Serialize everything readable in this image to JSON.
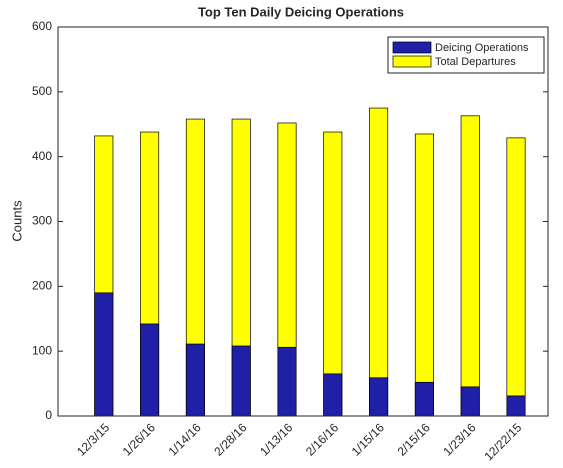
{
  "chart_data": {
    "type": "bar",
    "title": "Top Ten Daily Deicing Operations",
    "y_label": "Counts",
    "categories": [
      "12/3/15",
      "1/26/16",
      "1/14/16",
      "2/28/16",
      "1/13/16",
      "2/16/16",
      "1/15/16",
      "2/15/16",
      "1/23/16",
      "12/22/15"
    ],
    "series": [
      {
        "name": "Deicing Operations",
        "color": "#1f1fa8",
        "values": [
          190,
          142,
          111,
          108,
          106,
          65,
          59,
          52,
          45,
          31
        ]
      },
      {
        "name": "Total Departures",
        "color": "#ffff00",
        "values": [
          432,
          438,
          458,
          458,
          452,
          438,
          475,
          435,
          463,
          429
        ]
      }
    ],
    "ylim": [
      0,
      600
    ],
    "yticks": [
      0,
      100,
      200,
      300,
      400,
      500,
      600
    ],
    "grid": false,
    "legend": "top-right"
  }
}
